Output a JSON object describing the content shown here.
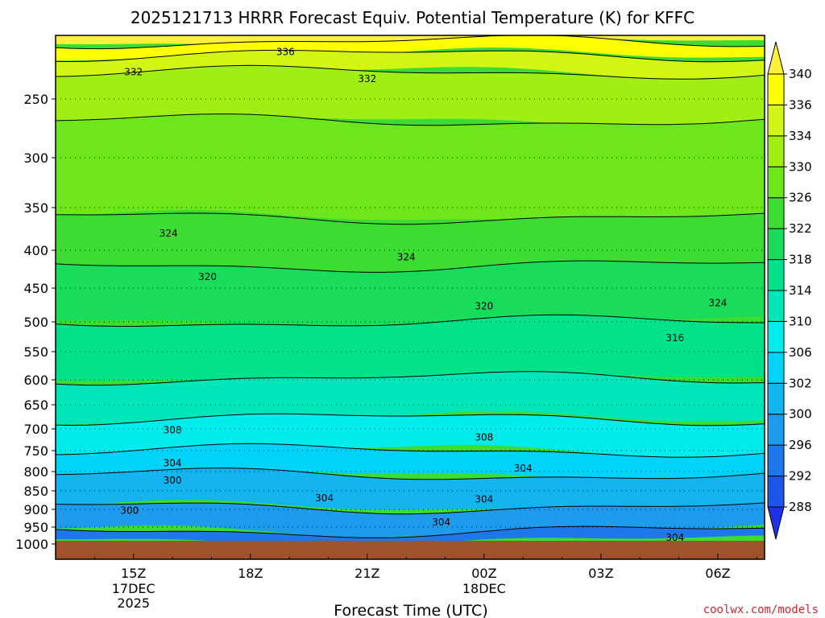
{
  "chart_data": {
    "type": "heatmap",
    "title": "2025121713 HRRR Forecast Equiv. Potential Temperature (K) for KFFC",
    "xlabel": "Forecast Time (UTC)",
    "ylabel": "",
    "x_ticks": [
      {
        "label": "15Z",
        "sub": [
          "17DEC",
          "2025"
        ],
        "t": 2
      },
      {
        "label": "18Z",
        "sub": [],
        "t": 5
      },
      {
        "label": "21Z",
        "sub": [],
        "t": 8
      },
      {
        "label": "00Z",
        "sub": [
          "18DEC"
        ],
        "t": 11
      },
      {
        "label": "03Z",
        "sub": [],
        "t": 14
      },
      {
        "label": "06Z",
        "sub": [],
        "t": 17
      }
    ],
    "y_ticks": [
      250,
      300,
      350,
      400,
      450,
      500,
      550,
      600,
      650,
      700,
      750,
      800,
      850,
      900,
      950,
      1000
    ],
    "colorbar": {
      "levels": [
        288,
        292,
        296,
        300,
        302,
        306,
        310,
        314,
        318,
        322,
        326,
        330,
        334,
        336,
        340
      ],
      "colors": [
        "#1e32e6",
        "#1e55eb",
        "#1e78eb",
        "#1e9ceb",
        "#14b4f0",
        "#00d2fa",
        "#00ebeb",
        "#00e6b9",
        "#00e18c",
        "#19dc5a",
        "#3cdc32",
        "#6ee61e",
        "#a0ee14",
        "#d2f514",
        "#ffff00",
        "#fff03c"
      ],
      "extend": "both"
    },
    "contour_labels": [
      {
        "text": "336",
        "t": 5.9,
        "p": 210
      },
      {
        "text": "332",
        "t": 2.0,
        "p": 227
      },
      {
        "text": "332",
        "t": 8.0,
        "p": 233
      },
      {
        "text": "324",
        "t": 2.9,
        "p": 380
      },
      {
        "text": "324",
        "t": 9.0,
        "p": 409
      },
      {
        "text": "324",
        "t": 17.0,
        "p": 472
      },
      {
        "text": "320",
        "t": 3.9,
        "p": 435
      },
      {
        "text": "320",
        "t": 11.0,
        "p": 477
      },
      {
        "text": "316",
        "t": 15.9,
        "p": 527
      },
      {
        "text": "308",
        "t": 3.0,
        "p": 703
      },
      {
        "text": "308",
        "t": 11.0,
        "p": 719
      },
      {
        "text": "304",
        "t": 3.0,
        "p": 780
      },
      {
        "text": "304",
        "t": 12.0,
        "p": 792
      },
      {
        "text": "300",
        "t": 3.0,
        "p": 823
      },
      {
        "text": "304",
        "t": 6.9,
        "p": 870
      },
      {
        "text": "304",
        "t": 11.0,
        "p": 873
      },
      {
        "text": "300",
        "t": 1.9,
        "p": 903
      },
      {
        "text": "304",
        "t": 9.9,
        "p": 936
      },
      {
        "text": "304",
        "t": 15.9,
        "p": 981
      }
    ],
    "grid": true,
    "watermark": "coolwx.com/models"
  }
}
